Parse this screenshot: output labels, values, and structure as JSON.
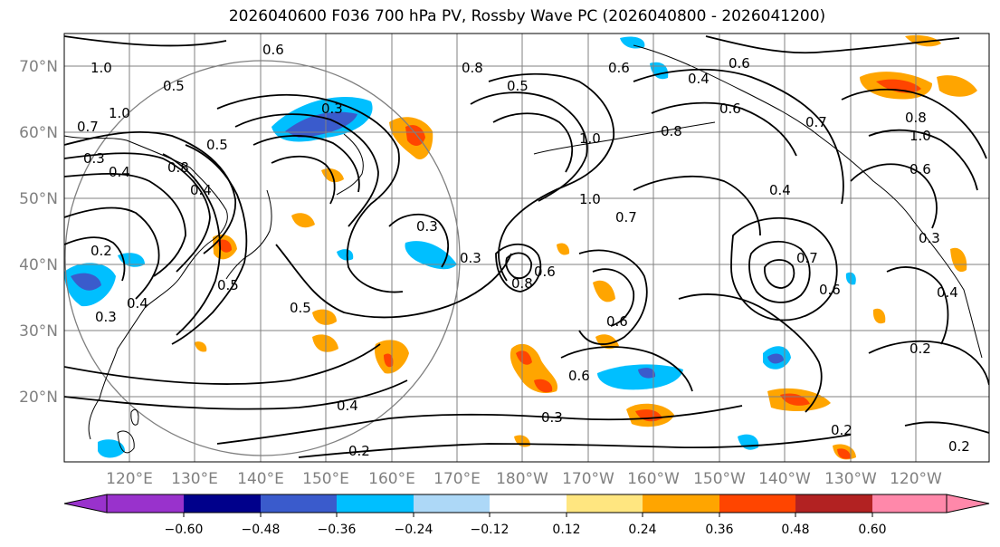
{
  "title": "2026040600 F036 700 hPa PV, Rossby Wave PC (2026040800 - 2026041200)",
  "map": {
    "lat_labels": [
      "70°N",
      "60°N",
      "50°N",
      "40°N",
      "30°N",
      "20°N"
    ],
    "lon_labels": [
      "120°E",
      "130°E",
      "140°E",
      "150°E",
      "160°E",
      "170°E",
      "180°W",
      "170°W",
      "160°W",
      "150°W",
      "140°W",
      "130°W",
      "120°W"
    ],
    "contour_labels": [
      "0.6",
      "0.6",
      "1.0",
      "0.5",
      "0.5",
      "1.0",
      "0.7",
      "0.8",
      "0.7",
      "0.3",
      "0.4",
      "0.8",
      "0.4",
      "0.5",
      "0.3",
      "0.2",
      "0.4",
      "0.3",
      "0.5",
      "0.3",
      "0.3",
      "0.8",
      "0.6",
      "0.6",
      "0.6",
      "0.5",
      "0.6",
      "0.4",
      "0.8",
      "1.0",
      "1.0",
      "0.6",
      "0.7",
      "0.8",
      "1.0",
      "0.6",
      "0.4",
      "0.7",
      "0.6",
      "0.3",
      "0.4",
      "0.2",
      "0.2",
      "0.2",
      "0.3",
      "0.2",
      "0.4"
    ]
  },
  "colorbar": {
    "ticks": [
      "−0.60",
      "−0.48",
      "−0.36",
      "−0.24",
      "−0.12",
      "0.12",
      "0.24",
      "0.36",
      "0.48",
      "0.60"
    ],
    "colors": [
      "#9932cc",
      "#00008b",
      "#3a5bcc",
      "#00bfff",
      "#add8f7",
      "#ffffff",
      "#ffe680",
      "#ffa500",
      "#ff4500",
      "#b22222",
      "#ff88aa"
    ]
  }
}
